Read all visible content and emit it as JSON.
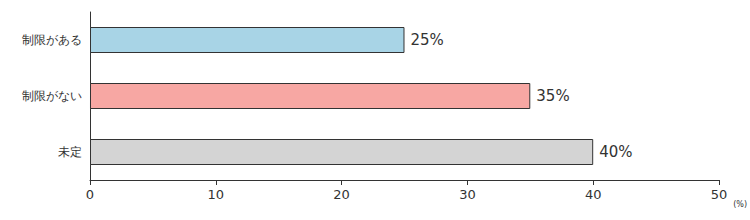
{
  "chart_data": {
    "type": "bar",
    "orientation": "horizontal",
    "categories": [
      "制限がある",
      "制限がない",
      "未定"
    ],
    "values": [
      25,
      35,
      40
    ],
    "value_labels": [
      "25%",
      "35%",
      "40%"
    ],
    "colors": [
      "#a8d4e6",
      "#f7a7a3",
      "#d4d4d4"
    ],
    "xlabel": "(%)",
    "xlim": [
      0,
      50
    ],
    "xticks": [
      0,
      10,
      20,
      30,
      40,
      50
    ],
    "grid": false,
    "data_labels": true
  }
}
